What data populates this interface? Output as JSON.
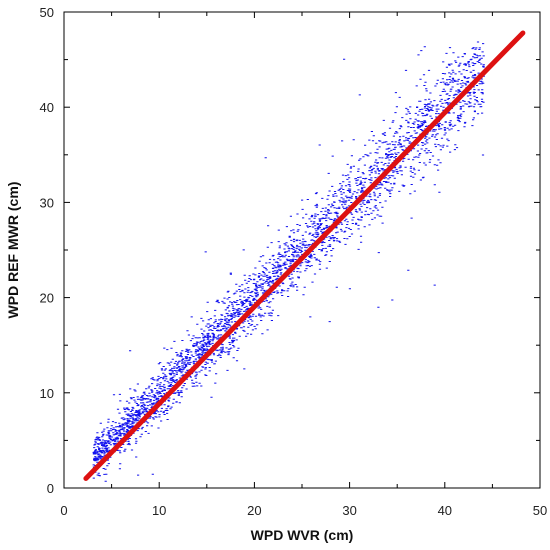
{
  "chart_data": {
    "type": "scatter",
    "title": "",
    "xlabel": "WPD WVR (cm)",
    "ylabel": "WPD REF MWR (cm)",
    "xlim": [
      0,
      50
    ],
    "ylim": [
      0,
      50
    ],
    "x_ticks": [
      "0",
      "10",
      "20",
      "30",
      "40",
      "50"
    ],
    "y_ticks": [
      "0",
      "10",
      "20",
      "30",
      "40",
      "50"
    ],
    "grid": false,
    "legend": "none",
    "series": [
      {
        "marker": "short horizontal dash",
        "color": "#1010ee",
        "approx_point_count": "tens of thousands",
        "x_range": [
          2,
          48
        ],
        "y_range": [
          0,
          47
        ],
        "trend": "tight cluster along y = x"
      }
    ],
    "fit_line": {
      "color": "#dd1111",
      "x": [
        2.3,
        48.2
      ],
      "y": [
        1.0,
        47.8
      ]
    }
  }
}
